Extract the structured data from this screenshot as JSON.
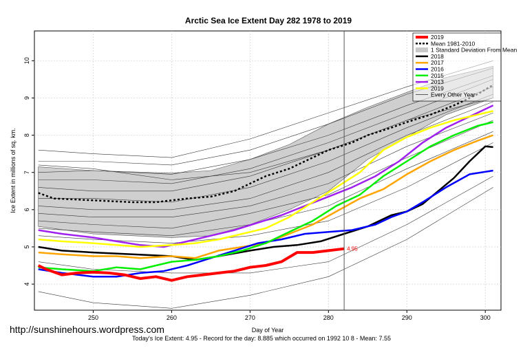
{
  "chart_data": {
    "type": "line",
    "title": "Arctic Sea Ice Extent Day 282 1978 to 2019",
    "xlabel": "Day of Year",
    "ylabel": "Ice Extent in millions of sq. km.",
    "xlim": [
      242.5,
      302
    ],
    "ylim": [
      3.3,
      10.8
    ],
    "x_ticks": [
      250,
      260,
      270,
      280,
      290,
      300
    ],
    "y_ticks": [
      4,
      5,
      6,
      7,
      8,
      9,
      10
    ],
    "grid": true,
    "legend_position": "top-right",
    "vline_day": 282,
    "current_value_label": "4.95",
    "legend": [
      {
        "label": "2019",
        "color": "#ff0000",
        "style": "line-thick"
      },
      {
        "label": "Mean 1981-2010",
        "color": "#000000",
        "style": "dotted"
      },
      {
        "label": "1 Standard Deviation From Mean",
        "color": "#c8c8c8",
        "style": "box"
      },
      {
        "label": "2018",
        "color": "#000000",
        "style": "line"
      },
      {
        "label": "2017",
        "color": "#ffa500",
        "style": "line"
      },
      {
        "label": "2016",
        "color": "#0000ff",
        "style": "line"
      },
      {
        "label": "2015",
        "color": "#00ee00",
        "style": "line"
      },
      {
        "label": "2013",
        "color": "#a020f0",
        "style": "line"
      },
      {
        "label": "2019",
        "color": "#ffff00",
        "style": "line"
      },
      {
        "label": "Every Other Year",
        "color": "#000000",
        "style": "thin"
      }
    ],
    "std_band": {
      "x": [
        243,
        250,
        260,
        265,
        270,
        275,
        280,
        285,
        290,
        295,
        301
      ],
      "upper": [
        7.15,
        7.05,
        6.98,
        7.05,
        7.35,
        7.75,
        8.3,
        8.75,
        9.15,
        9.55,
        9.85
      ],
      "lower": [
        5.55,
        5.35,
        5.25,
        5.3,
        5.6,
        6.0,
        6.5,
        7.35,
        7.95,
        8.55,
        9.0
      ]
    },
    "series": [
      {
        "name": "2019",
        "color": "#ff0000",
        "width": 4,
        "x": [
          243,
          244,
          246,
          248,
          250,
          252,
          254,
          256,
          258,
          260,
          262,
          264,
          266,
          268,
          270,
          272,
          274,
          276,
          277,
          278,
          280,
          282
        ],
        "y": [
          4.5,
          4.4,
          4.25,
          4.3,
          4.32,
          4.3,
          4.25,
          4.15,
          4.2,
          4.1,
          4.2,
          4.25,
          4.3,
          4.35,
          4.45,
          4.5,
          4.6,
          4.85,
          4.85,
          4.85,
          4.9,
          4.95
        ]
      },
      {
        "name": "Mean 1981-2010",
        "color": "#000000",
        "width": 2.5,
        "dash": "3,3",
        "x": [
          243,
          245,
          250,
          255,
          258,
          262,
          265,
          268,
          270,
          272,
          275,
          278,
          280,
          283,
          285,
          288,
          290,
          293,
          296,
          299,
          301
        ],
        "y": [
          6.45,
          6.3,
          6.25,
          6.2,
          6.2,
          6.3,
          6.35,
          6.5,
          6.7,
          6.9,
          7.1,
          7.4,
          7.6,
          7.8,
          8.0,
          8.2,
          8.35,
          8.55,
          8.8,
          9.1,
          9.35
        ]
      },
      {
        "name": "2018",
        "color": "#000000",
        "width": 2.5,
        "x": [
          243,
          246,
          250,
          255,
          260,
          263,
          266,
          270,
          273,
          276,
          279,
          282,
          285,
          288,
          290,
          292,
          294,
          296,
          298,
          300,
          301
        ],
        "y": [
          5.0,
          4.9,
          4.85,
          4.8,
          4.75,
          4.65,
          4.75,
          4.9,
          5.0,
          5.05,
          5.15,
          5.35,
          5.55,
          5.85,
          5.95,
          6.15,
          6.5,
          6.85,
          7.3,
          7.7,
          7.68
        ]
      },
      {
        "name": "2017",
        "color": "#ffa500",
        "width": 2.5,
        "x": [
          243,
          246,
          250,
          253,
          256,
          260,
          263,
          266,
          269,
          272,
          275,
          278,
          281,
          284,
          287,
          290,
          293,
          296,
          299,
          301
        ],
        "y": [
          4.85,
          4.8,
          4.75,
          4.75,
          4.7,
          4.75,
          4.7,
          4.9,
          5.0,
          5.1,
          5.35,
          5.6,
          5.95,
          6.3,
          6.55,
          6.95,
          7.3,
          7.6,
          7.85,
          8.0
        ]
      },
      {
        "name": "2016",
        "color": "#0000ff",
        "width": 2.5,
        "x": [
          243,
          246,
          250,
          253,
          256,
          259,
          262,
          265,
          268,
          271,
          274,
          277,
          280,
          283,
          286,
          288,
          290,
          292,
          295,
          298,
          301
        ],
        "y": [
          4.4,
          4.3,
          4.2,
          4.2,
          4.3,
          4.35,
          4.5,
          4.7,
          4.9,
          5.1,
          5.2,
          5.35,
          5.4,
          5.45,
          5.6,
          5.8,
          5.95,
          6.2,
          6.6,
          6.95,
          7.05
        ]
      },
      {
        "name": "2015",
        "color": "#00ee00",
        "width": 2.5,
        "x": [
          243,
          246,
          250,
          253,
          256,
          260,
          263,
          266,
          269,
          272,
          275,
          278,
          281,
          284,
          287,
          290,
          293,
          296,
          299,
          301
        ],
        "y": [
          4.45,
          4.4,
          4.35,
          4.45,
          4.4,
          4.6,
          4.65,
          4.75,
          4.9,
          5.1,
          5.4,
          5.7,
          6.1,
          6.4,
          6.9,
          7.3,
          7.7,
          8.0,
          8.25,
          8.35
        ]
      },
      {
        "name": "2013",
        "color": "#a020f0",
        "width": 2.5,
        "x": [
          243,
          246,
          250,
          253,
          256,
          259,
          262,
          265,
          268,
          271,
          274,
          277,
          280,
          283,
          286,
          289,
          292,
          295,
          298,
          301
        ],
        "y": [
          5.45,
          5.35,
          5.25,
          5.15,
          5.05,
          5.0,
          5.15,
          5.3,
          5.45,
          5.65,
          5.85,
          6.1,
          6.35,
          6.6,
          6.9,
          7.3,
          7.8,
          8.2,
          8.5,
          8.8
        ]
      },
      {
        "name": "2019",
        "color": "#ffff00",
        "width": 2.5,
        "x": [
          243,
          246,
          250,
          253,
          256,
          260,
          263,
          266,
          269,
          272,
          275,
          278,
          281,
          284,
          287,
          290,
          293,
          296,
          299,
          301
        ],
        "y": [
          5.2,
          5.15,
          5.1,
          5.05,
          5.0,
          5.05,
          5.1,
          5.2,
          5.35,
          5.5,
          5.8,
          6.2,
          6.6,
          7.0,
          7.6,
          7.95,
          8.2,
          8.4,
          8.55,
          8.65
        ]
      }
    ],
    "thin_series": [
      {
        "x": [
          243,
          250,
          260,
          270,
          280,
          290,
          301
        ],
        "y": [
          7.6,
          7.5,
          7.4,
          7.9,
          8.6,
          9.3,
          10.0
        ]
      },
      {
        "x": [
          243,
          250,
          260,
          270,
          280,
          290,
          301
        ],
        "y": [
          7.3,
          7.3,
          7.2,
          7.6,
          8.3,
          9.1,
          9.8
        ]
      },
      {
        "x": [
          243,
          250,
          260,
          270,
          280,
          290,
          301
        ],
        "y": [
          7.0,
          7.05,
          6.95,
          7.35,
          8.0,
          8.8,
          9.6
        ]
      },
      {
        "x": [
          243,
          250,
          260,
          270,
          280,
          290,
          301
        ],
        "y": [
          6.8,
          6.8,
          6.7,
          7.1,
          7.8,
          8.6,
          9.5
        ]
      },
      {
        "x": [
          243,
          250,
          260,
          270,
          280,
          290,
          301
        ],
        "y": [
          6.6,
          6.5,
          6.5,
          6.9,
          7.6,
          8.4,
          9.3
        ]
      },
      {
        "x": [
          243,
          250,
          260,
          270,
          280,
          290,
          301
        ],
        "y": [
          6.3,
          6.3,
          6.2,
          6.6,
          7.3,
          8.2,
          9.1
        ]
      },
      {
        "x": [
          243,
          250,
          260,
          270,
          280,
          290,
          301
        ],
        "y": [
          6.1,
          6.0,
          6.0,
          6.3,
          7.0,
          8.0,
          8.9
        ]
      },
      {
        "x": [
          243,
          250,
          260,
          270,
          280,
          290,
          301
        ],
        "y": [
          5.9,
          5.8,
          5.8,
          6.1,
          6.7,
          7.7,
          8.6
        ]
      },
      {
        "x": [
          243,
          250,
          260,
          270,
          280,
          290,
          301
        ],
        "y": [
          5.7,
          5.6,
          5.5,
          5.9,
          6.4,
          7.4,
          8.4
        ]
      },
      {
        "x": [
          243,
          250,
          260,
          270,
          280,
          290,
          301
        ],
        "y": [
          5.5,
          5.4,
          5.3,
          5.6,
          6.1,
          7.1,
          8.1
        ]
      },
      {
        "x": [
          243,
          250,
          260,
          270,
          280,
          290,
          301
        ],
        "y": [
          5.3,
          5.2,
          5.1,
          5.3,
          5.7,
          6.6,
          7.8
        ]
      },
      {
        "x": [
          243,
          250,
          260,
          270,
          280,
          290,
          301
        ],
        "y": [
          3.8,
          3.5,
          3.35,
          3.7,
          4.2,
          5.2,
          6.6
        ]
      },
      {
        "x": [
          243,
          250,
          260,
          270,
          280,
          290,
          301
        ],
        "y": [
          4.6,
          4.4,
          4.3,
          4.3,
          4.6,
          5.6,
          6.9
        ]
      },
      {
        "x": [
          243,
          250,
          260,
          270,
          280,
          290,
          301
        ],
        "y": [
          7.2,
          7.1,
          6.8,
          7.0,
          7.6,
          8.4,
          9.0
        ]
      }
    ]
  },
  "watermark": "http://sunshinehours.wordpress.com",
  "footer": "Today's Ice Extent: 4.95  - Record for the day: 8.885 which occurred on 1992 10 8  - Mean: 7.55"
}
